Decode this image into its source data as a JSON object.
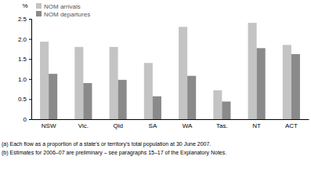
{
  "chart_data": {
    "type": "bar",
    "ylabel": "%",
    "categories": [
      "NSW",
      "Vic.",
      "Qld",
      "SA",
      "WA",
      "Tas.",
      "NT",
      "ACT"
    ],
    "series": [
      {
        "name": "NOM arrivals",
        "color": "#c4c4c4",
        "values": [
          1.93,
          1.8,
          1.8,
          1.4,
          2.3,
          0.72,
          2.4,
          1.85
        ]
      },
      {
        "name": "NOM departures",
        "color": "#8a8a8a",
        "values": [
          1.13,
          0.9,
          0.98,
          0.57,
          1.08,
          0.44,
          1.77,
          1.62
        ]
      }
    ],
    "ylim": [
      0,
      2.5
    ],
    "yticks": [
      0,
      0.5,
      {
        "value": 1.0,
        "label": "1.0"
      },
      1.5,
      {
        "value": 2.0,
        "label": "2.0"
      },
      2.5
    ],
    "grid": false,
    "legend": "top-left",
    "annotations": [
      "(a) Each flow as a proportion of a state's or territory's total population at 30 June 2007.",
      "(b) Estimates for 2006–07 are preliminary – see paragraphs 15–17 of the Explanatory Notes."
    ]
  }
}
